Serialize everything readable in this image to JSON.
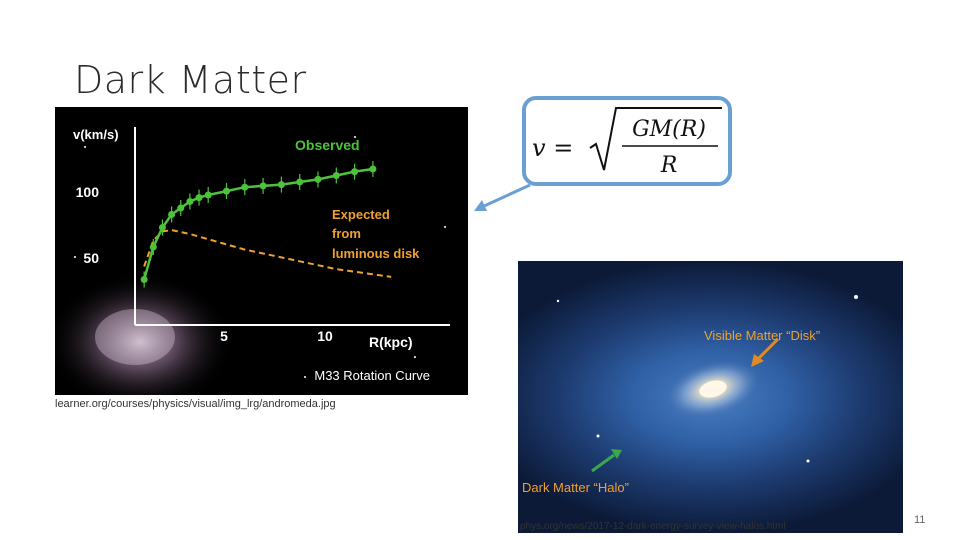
{
  "slide": {
    "title": "Dark Matter",
    "page_number": "11"
  },
  "rotation_chart": {
    "y_axis_label": "v(km/s)",
    "x_axis_label": "R(kpc)",
    "y_ticks": [
      "100",
      "50"
    ],
    "x_ticks": [
      "5",
      "10"
    ],
    "observed_label": "Observed",
    "expected_label_lines": [
      "Expected",
      "from",
      "luminous disk"
    ],
    "caption": "M33 Rotation Curve",
    "credit": "learner.org/courses/physics/visual/img_lrg/andromeda.jpg",
    "colors": {
      "observed": "#4cc43a",
      "expected": "#f0a030",
      "axes": "#ffffff"
    }
  },
  "formula": {
    "lhs": "v =",
    "numerator": "GM(R)",
    "denominator": "R"
  },
  "halo_image": {
    "disk_label": "Visible Matter “Disk”",
    "halo_label": "Dark Matter “Halo”",
    "credit": "phys.org/news/2017-12-dark-energy-survey-view-halos.html",
    "colors": {
      "arrow_disk": "#e08a20",
      "arrow_halo": "#3aa84a"
    }
  },
  "chart_data": {
    "type": "scatter",
    "title": "M33 Rotation Curve",
    "xlabel": "R(kpc)",
    "ylabel": "v(km/s)",
    "xlim": [
      0,
      15
    ],
    "ylim": [
      0,
      140
    ],
    "series": [
      {
        "name": "Observed",
        "x": [
          0.5,
          1.0,
          1.5,
          2.0,
          2.5,
          3.0,
          3.5,
          4.0,
          5.0,
          6.0,
          7.0,
          8.0,
          9.0,
          10.0,
          11.0,
          12.0,
          13.0
        ],
        "values": [
          35,
          60,
          75,
          85,
          90,
          95,
          98,
          100,
          103,
          106,
          107,
          108,
          110,
          112,
          115,
          118,
          120
        ]
      },
      {
        "name": "Expected from luminous disk",
        "x": [
          0.5,
          1.0,
          1.5,
          2.0,
          3.0,
          4.0,
          5.0,
          6.0,
          7.0,
          8.0,
          9.0,
          10.0,
          11.0,
          12.0,
          13.0,
          14.0
        ],
        "values": [
          45,
          65,
          72,
          73,
          70,
          66,
          62,
          58,
          55,
          52,
          49,
          46,
          43,
          41,
          39,
          37
        ]
      }
    ]
  }
}
